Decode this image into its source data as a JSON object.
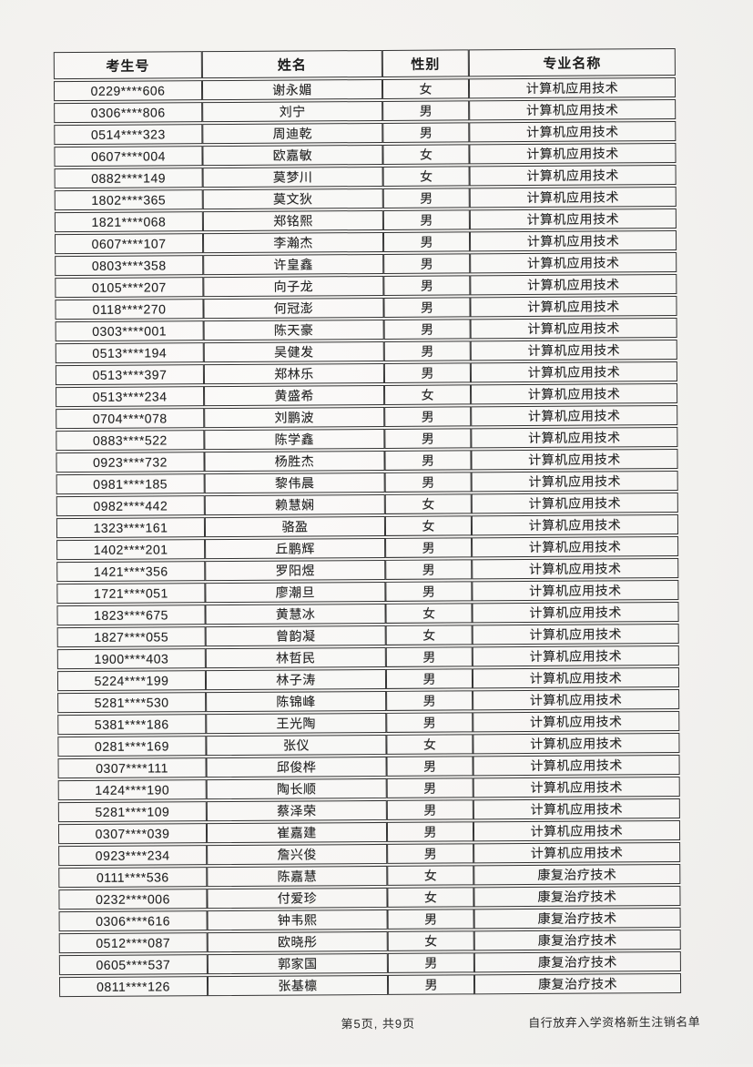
{
  "page": {
    "colors": {
      "paper": "#f3f2ef",
      "table_border": "#343434",
      "text": "#1d1d1d"
    }
  },
  "table": {
    "columns": [
      "考生号",
      "姓名",
      "性别",
      "专业名称"
    ],
    "rows": [
      {
        "id": "0229****606",
        "name": "谢永媚",
        "gender": "女",
        "major": "计算机应用技术"
      },
      {
        "id": "0306****806",
        "name": "刘宁",
        "gender": "男",
        "major": "计算机应用技术"
      },
      {
        "id": "0514****323",
        "name": "周迪乾",
        "gender": "男",
        "major": "计算机应用技术"
      },
      {
        "id": "0607****004",
        "name": "欧嘉敏",
        "gender": "女",
        "major": "计算机应用技术"
      },
      {
        "id": "0882****149",
        "name": "莫梦川",
        "gender": "女",
        "major": "计算机应用技术"
      },
      {
        "id": "1802****365",
        "name": "莫文狄",
        "gender": "男",
        "major": "计算机应用技术"
      },
      {
        "id": "1821****068",
        "name": "郑铭熙",
        "gender": "男",
        "major": "计算机应用技术"
      },
      {
        "id": "0607****107",
        "name": "李瀚杰",
        "gender": "男",
        "major": "计算机应用技术"
      },
      {
        "id": "0803****358",
        "name": "许皇鑫",
        "gender": "男",
        "major": "计算机应用技术"
      },
      {
        "id": "0105****207",
        "name": "向子龙",
        "gender": "男",
        "major": "计算机应用技术"
      },
      {
        "id": "0118****270",
        "name": "何冠澎",
        "gender": "男",
        "major": "计算机应用技术"
      },
      {
        "id": "0303****001",
        "name": "陈天豪",
        "gender": "男",
        "major": "计算机应用技术"
      },
      {
        "id": "0513****194",
        "name": "吴健发",
        "gender": "男",
        "major": "计算机应用技术"
      },
      {
        "id": "0513****397",
        "name": "郑林乐",
        "gender": "男",
        "major": "计算机应用技术"
      },
      {
        "id": "0513****234",
        "name": "黄盛希",
        "gender": "女",
        "major": "计算机应用技术"
      },
      {
        "id": "0704****078",
        "name": "刘鹏波",
        "gender": "男",
        "major": "计算机应用技术"
      },
      {
        "id": "0883****522",
        "name": "陈学鑫",
        "gender": "男",
        "major": "计算机应用技术"
      },
      {
        "id": "0923****732",
        "name": "杨胜杰",
        "gender": "男",
        "major": "计算机应用技术"
      },
      {
        "id": "0981****185",
        "name": "黎伟晨",
        "gender": "男",
        "major": "计算机应用技术"
      },
      {
        "id": "0982****442",
        "name": "赖慧娴",
        "gender": "女",
        "major": "计算机应用技术"
      },
      {
        "id": "1323****161",
        "name": "骆盈",
        "gender": "女",
        "major": "计算机应用技术"
      },
      {
        "id": "1402****201",
        "name": "丘鹏辉",
        "gender": "男",
        "major": "计算机应用技术"
      },
      {
        "id": "1421****356",
        "name": "罗阳煜",
        "gender": "男",
        "major": "计算机应用技术"
      },
      {
        "id": "1721****051",
        "name": "廖潮旦",
        "gender": "男",
        "major": "计算机应用技术"
      },
      {
        "id": "1823****675",
        "name": "黄慧冰",
        "gender": "女",
        "major": "计算机应用技术"
      },
      {
        "id": "1827****055",
        "name": "曾韵凝",
        "gender": "女",
        "major": "计算机应用技术"
      },
      {
        "id": "1900****403",
        "name": "林哲民",
        "gender": "男",
        "major": "计算机应用技术"
      },
      {
        "id": "5224****199",
        "name": "林子涛",
        "gender": "男",
        "major": "计算机应用技术"
      },
      {
        "id": "5281****530",
        "name": "陈锦峰",
        "gender": "男",
        "major": "计算机应用技术"
      },
      {
        "id": "5381****186",
        "name": "王光陶",
        "gender": "男",
        "major": "计算机应用技术"
      },
      {
        "id": "0281****169",
        "name": "张仪",
        "gender": "女",
        "major": "计算机应用技术"
      },
      {
        "id": "0307****111",
        "name": "邱俊桦",
        "gender": "男",
        "major": "计算机应用技术"
      },
      {
        "id": "1424****190",
        "name": "陶长顺",
        "gender": "男",
        "major": "计算机应用技术"
      },
      {
        "id": "5281****109",
        "name": "蔡泽荣",
        "gender": "男",
        "major": "计算机应用技术"
      },
      {
        "id": "0307****039",
        "name": "崔嘉建",
        "gender": "男",
        "major": "计算机应用技术"
      },
      {
        "id": "0923****234",
        "name": "詹兴俊",
        "gender": "男",
        "major": "计算机应用技术"
      },
      {
        "id": "0111****536",
        "name": "陈嘉慧",
        "gender": "女",
        "major": "康复治疗技术"
      },
      {
        "id": "0232****006",
        "name": "付爱珍",
        "gender": "女",
        "major": "康复治疗技术"
      },
      {
        "id": "0306****616",
        "name": "钟韦熙",
        "gender": "男",
        "major": "康复治疗技术"
      },
      {
        "id": "0512****087",
        "name": "欧晓彤",
        "gender": "女",
        "major": "康复治疗技术"
      },
      {
        "id": "0605****537",
        "name": "郭家国",
        "gender": "男",
        "major": "康复治疗技术"
      },
      {
        "id": "0811****126",
        "name": "张基檩",
        "gender": "男",
        "major": "康复治疗技术"
      }
    ]
  },
  "footer": {
    "page_indicator": "第5页, 共9页",
    "doc_title": "自行放弃入学资格新生注销名单"
  }
}
